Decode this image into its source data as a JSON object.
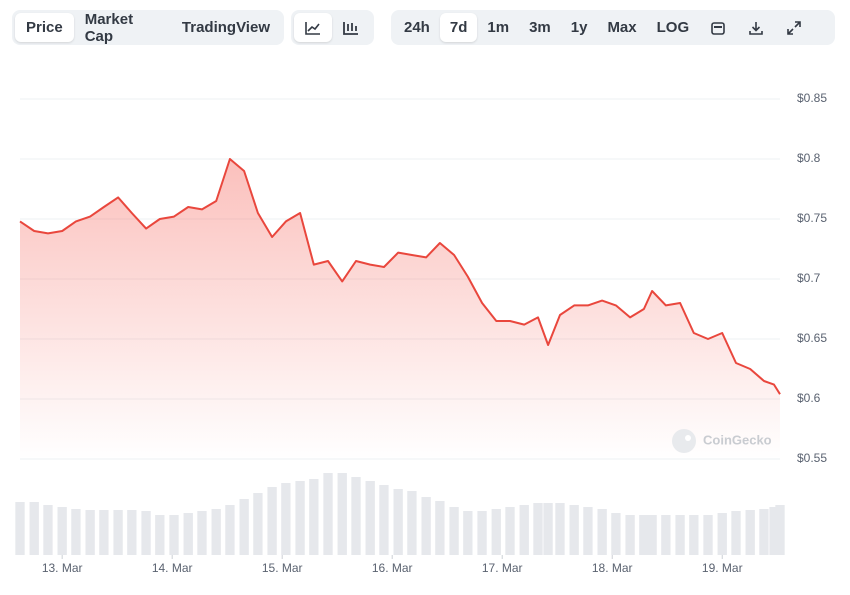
{
  "toolbar": {
    "tabs": [
      "Price",
      "Market Cap",
      "TradingView"
    ],
    "active_tab": 0,
    "ranges": [
      "24h",
      "7d",
      "1m",
      "3m",
      "1y",
      "Max",
      "LOG"
    ],
    "active_range": 1
  },
  "chart_data": {
    "type": "line",
    "watermark": "CoinGecko",
    "color": "#e9473d",
    "grid": true,
    "x": [
      0,
      3.1,
      6.1,
      9.2,
      12.2,
      15.3,
      18.3,
      21.4,
      24.4,
      27.5,
      30.5,
      33.6,
      36.7,
      39.7,
      42.8,
      45.8,
      48.9,
      51.9,
      55,
      58,
      61.1,
      64.1,
      67.2,
      70.3,
      73.3,
      76.4,
      79.4,
      82.5,
      85.5,
      88.6,
      91.6,
      94.7,
      97.7,
      100.8,
      103.9,
      106.9,
      110,
      113,
      115.2,
      117.8,
      120.9,
      123.9,
      127,
      130,
      133.1,
      136.1,
      137.9,
      140.9,
      144,
      147,
      150.1,
      153.2,
      156.2,
      159.3,
      162.3,
      164.5,
      165.8
    ],
    "values": [
      0.748,
      0.74,
      0.738,
      0.74,
      0.748,
      0.752,
      0.76,
      0.768,
      0.755,
      0.742,
      0.75,
      0.752,
      0.76,
      0.758,
      0.765,
      0.8,
      0.79,
      0.755,
      0.735,
      0.748,
      0.755,
      0.712,
      0.715,
      0.698,
      0.715,
      0.712,
      0.71,
      0.722,
      0.72,
      0.718,
      0.73,
      0.72,
      0.702,
      0.68,
      0.665,
      0.665,
      0.662,
      0.668,
      0.645,
      0.67,
      0.678,
      0.678,
      0.682,
      0.678,
      0.668,
      0.675,
      0.69,
      0.678,
      0.68,
      0.655,
      0.65,
      0.655,
      0.63,
      0.625,
      0.615,
      0.612,
      0.604
    ],
    "volume": [
      53,
      53,
      50,
      48,
      46,
      45,
      45,
      45,
      45,
      44,
      40,
      40,
      42,
      44,
      46,
      50,
      56,
      62,
      68,
      72,
      74,
      76,
      82,
      82,
      78,
      74,
      70,
      66,
      64,
      58,
      54,
      48,
      44,
      44,
      46,
      48,
      50,
      52,
      52,
      52,
      50,
      48,
      46,
      42,
      40,
      40,
      40,
      40,
      40,
      40,
      40,
      42,
      44,
      45,
      46,
      48,
      50
    ],
    "xlim": [
      0,
      165.8
    ],
    "xticks": [
      {
        "value": 9.2,
        "label": "13. Mar"
      },
      {
        "value": 33.2,
        "label": "14. Mar"
      },
      {
        "value": 57.2,
        "label": "15. Mar"
      },
      {
        "value": 81.2,
        "label": "16. Mar"
      },
      {
        "value": 105.2,
        "label": "17. Mar"
      },
      {
        "value": 129.2,
        "label": "18. Mar"
      },
      {
        "value": 153.2,
        "label": "19. Mar"
      }
    ],
    "ylim": [
      0.55,
      0.85
    ],
    "yticks": [
      {
        "value": 0.55,
        "label": "$0.55"
      },
      {
        "value": 0.6,
        "label": "$0.6"
      },
      {
        "value": 0.65,
        "label": "$0.65"
      },
      {
        "value": 0.7,
        "label": "$0.7"
      },
      {
        "value": 0.75,
        "label": "$0.75"
      },
      {
        "value": 0.8,
        "label": "$0.8"
      },
      {
        "value": 0.85,
        "label": "$0.85"
      }
    ]
  }
}
